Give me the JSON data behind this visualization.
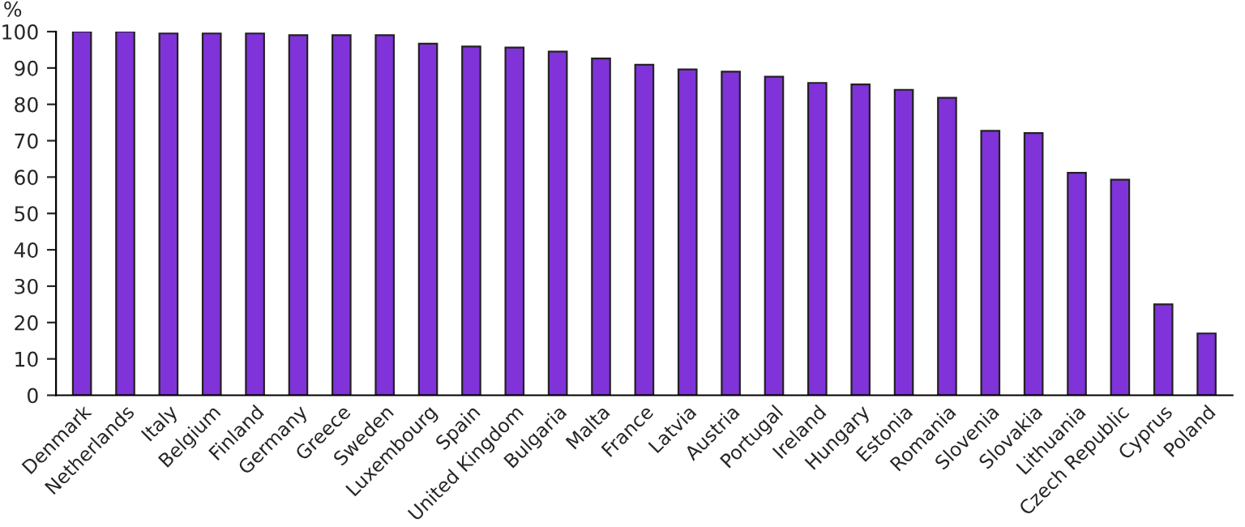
{
  "chart_data": {
    "type": "bar",
    "ylabel": "%",
    "categories": [
      "Denmark",
      "Netherlands",
      "Italy",
      "Belgium",
      "Finland",
      "Germany",
      "Greece",
      "Sweden",
      "Luxembourg",
      "Spain",
      "United Kingdom",
      "Bulgaria",
      "Malta",
      "France",
      "Latvia",
      "Austria",
      "Portugal",
      "Ireland",
      "Hungary",
      "Estonia",
      "Romania",
      "Slovenia",
      "Slovakia",
      "Lithuania",
      "Czech Republic",
      "Cyprus",
      "Poland"
    ],
    "values": [
      100,
      100,
      99.5,
      99.5,
      99.5,
      99,
      99,
      99,
      96.7,
      95.9,
      95.6,
      94.5,
      92.6,
      90.9,
      89.6,
      89,
      87.6,
      85.9,
      85.5,
      84,
      81.8,
      72.7,
      72.1,
      61.2,
      59.3,
      25,
      17
    ],
    "color": "#8033d9",
    "ylim": [
      0,
      100
    ],
    "yticks": [
      0,
      10,
      20,
      30,
      40,
      50,
      60,
      70,
      80,
      90,
      100
    ],
    "grid": false,
    "legend": false
  }
}
